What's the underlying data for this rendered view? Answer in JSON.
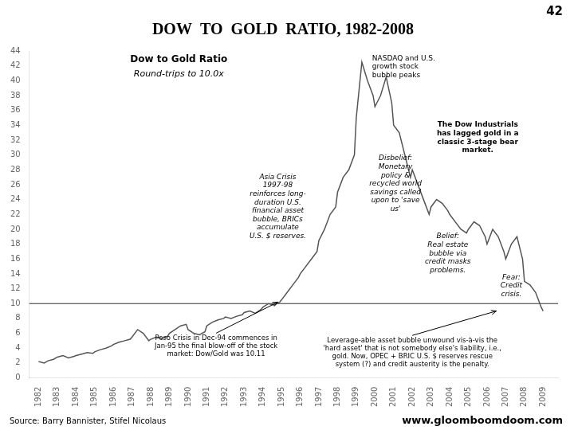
{
  "chart_data": {
    "type": "line",
    "title": "DOW  TO  GOLD  RATIO, 1982-2008",
    "page_number": "42",
    "inner_title": "Dow to Gold Ratio",
    "inner_subtitle": "Round-trips to 10.0x",
    "annotations": [
      "Asia Crisis\n1997-98\nreinforces long-\nduration U.S.\nfinancial asset\nbubble, BRICs\naccumulate\nU.S. $ reserves.",
      "Peso Crisis in Dec-94 commences in\nJan-95 the final blow-off of the stock\nmarket: Dow/Gold was 10.11",
      "NASDAQ and U.S.\ngrowth stock\nbubble peaks",
      "Disbelief:\nMonetary\npolicy &\nrecycled world\nsavings called\nupon to 'save\nus'",
      "The Dow Industrials\nhas lagged gold in a\nclassic 3-stage bear\nmarket.",
      "Belief:\nReal estate\nbubble via\ncredit masks\nproblems.",
      "Fear:\nCredit\ncrisis.",
      "Leverage-able asset bubble unwound vis-à-vis the\n'hard asset' that is not somebody else's liability, i.e.,\ngold. Now, OPEC + BRIC U.S. $ reserves rescue\nsystem (?) and credit austerity is the penalty."
    ],
    "source": "Source: Barry Bannister, Stifel Nicolaus",
    "website": "www.gloomboomdoom.com",
    "color": "#555555",
    "hline": {
      "y": 10,
      "color": "#333333"
    },
    "xlim": [
      1981.5,
      2009.8
    ],
    "xticks": [
      1982,
      1983,
      1984,
      1985,
      1986,
      1987,
      1988,
      1989,
      1990,
      1991,
      1992,
      1993,
      1994,
      1995,
      1996,
      1997,
      1998,
      1999,
      2000,
      2001,
      2002,
      2003,
      2004,
      2005,
      2006,
      2007,
      2008,
      2009
    ],
    "ylim": [
      0,
      44
    ],
    "yticks": [
      0,
      2,
      4,
      6,
      8,
      10,
      12,
      14,
      16,
      18,
      20,
      22,
      24,
      26,
      28,
      30,
      32,
      34,
      36,
      38,
      40,
      42,
      44
    ],
    "grid": false,
    "x": [
      1982.0,
      1982.3,
      1982.5,
      1982.8,
      1983.0,
      1983.3,
      1983.6,
      1983.9,
      1984.0,
      1984.3,
      1984.6,
      1984.9,
      1985.0,
      1985.3,
      1985.6,
      1985.9,
      1986.0,
      1986.3,
      1986.6,
      1986.9,
      1987.0,
      1987.3,
      1987.6,
      1987.9,
      1988.0,
      1988.3,
      1988.6,
      1988.9,
      1989.0,
      1989.3,
      1989.6,
      1989.9,
      1990.0,
      1990.3,
      1990.6,
      1990.9,
      1991.0,
      1991.3,
      1991.6,
      1991.9,
      1992.0,
      1992.3,
      1992.6,
      1992.9,
      1993.0,
      1993.3,
      1993.6,
      1993.9,
      1994.0,
      1994.3,
      1994.6,
      1994.9,
      1995.0,
      1995.3,
      1995.6,
      1995.9,
      1996.0,
      1996.3,
      1996.6,
      1996.9,
      1997.0,
      1997.3,
      1997.6,
      1997.9,
      1998.0,
      1998.3,
      1998.6,
      1998.9,
      1999.0,
      1999.3,
      1999.6,
      1999.9,
      2000.0,
      2000.3,
      2000.6,
      2000.9,
      2001.0,
      2001.3,
      2001.6,
      2001.9,
      2002.0,
      2002.3,
      2002.6,
      2002.9,
      2003.0,
      2003.3,
      2003.6,
      2003.9,
      2004.0,
      2004.3,
      2004.6,
      2004.9,
      2005.0,
      2005.3,
      2005.6,
      2005.9,
      2006.0,
      2006.3,
      2006.6,
      2006.9,
      2007.0,
      2007.3,
      2007.6,
      2007.9,
      2008.0,
      2008.3,
      2008.6,
      2008.9,
      2009.0
    ],
    "values": [
      2.2,
      2.0,
      2.3,
      2.5,
      2.8,
      3.0,
      2.7,
      2.9,
      3.0,
      3.2,
      3.4,
      3.3,
      3.5,
      3.8,
      4.0,
      4.3,
      4.5,
      4.8,
      5.0,
      5.2,
      5.5,
      6.5,
      6.0,
      5.0,
      5.2,
      5.5,
      5.3,
      5.6,
      6.0,
      6.5,
      7.0,
      7.2,
      6.5,
      6.0,
      5.8,
      6.2,
      7.0,
      7.5,
      7.8,
      8.0,
      8.2,
      8.0,
      8.3,
      8.5,
      8.8,
      9.0,
      8.7,
      9.2,
      9.5,
      10.0,
      9.8,
      10.2,
      10.5,
      11.5,
      12.5,
      13.5,
      14.0,
      15.0,
      16.0,
      17.0,
      18.5,
      20.0,
      22.0,
      23.0,
      25.0,
      27.0,
      28.0,
      30.0,
      35.0,
      42.5,
      40.0,
      38.0,
      36.5,
      38.0,
      40.5,
      37.0,
      34.0,
      33.0,
      30.0,
      27.0,
      28.0,
      26.0,
      24.0,
      22.0,
      23.0,
      24.0,
      23.5,
      22.5,
      22.0,
      21.0,
      20.0,
      19.5,
      20.0,
      21.0,
      20.5,
      19.0,
      18.0,
      20.0,
      19.0,
      17.0,
      16.0,
      18.0,
      19.0,
      16.0,
      13.0,
      12.5,
      11.5,
      9.5,
      9.0
    ]
  }
}
